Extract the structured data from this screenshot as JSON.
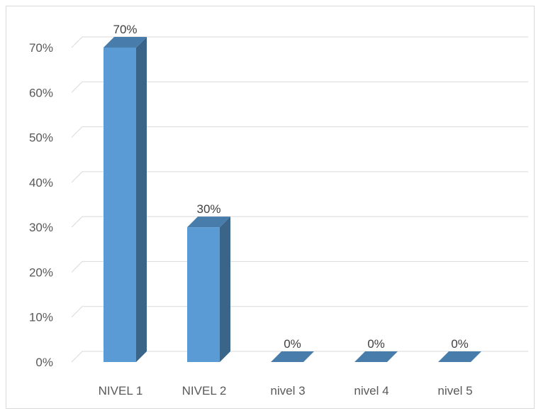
{
  "chart_data": {
    "type": "bar",
    "style": "3d-column",
    "title": "",
    "xlabel": "",
    "ylabel": "",
    "categories": [
      "NIVEL 1",
      "NIVEL 2",
      "nivel 3",
      "nivel 4",
      "nivel 5"
    ],
    "values": [
      70,
      30,
      0,
      0,
      0
    ],
    "data_labels": [
      "70%",
      "30%",
      "0%",
      "0%",
      "0%"
    ],
    "ylim": [
      0,
      70
    ],
    "y_ticks": [
      0,
      10,
      20,
      30,
      40,
      50,
      60,
      70
    ],
    "y_tick_labels": [
      "0%",
      "10%",
      "20%",
      "30%",
      "40%",
      "50%",
      "60%",
      "70%"
    ],
    "grid": true,
    "legend": "none",
    "colors": {
      "bar_front": "#5b9bd5",
      "bar_side": "#3a6588",
      "bar_top": "#477cab",
      "grid": "#d9d9d9",
      "tick_text": "#595959",
      "label_text": "#404040"
    }
  }
}
